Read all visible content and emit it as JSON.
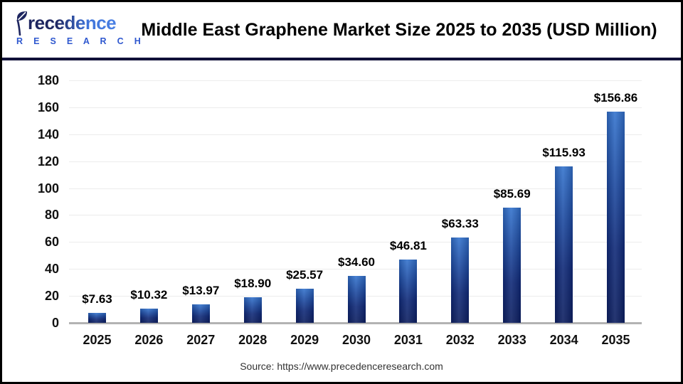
{
  "header": {
    "logo": {
      "brand": "Precedence",
      "sub": "R E S E A R C H",
      "navy": "#1e2660",
      "blue": "#3f74da"
    },
    "title": "Middle East Graphene Market Size 2025 to 2035 (USD Million)"
  },
  "chart_data": {
    "type": "bar",
    "title": "Middle East Graphene Market Size 2025 to 2035 (USD Million)",
    "unit": "USD Million",
    "categories": [
      "2025",
      "2026",
      "2027",
      "2028",
      "2029",
      "2030",
      "2031",
      "2032",
      "2033",
      "2034",
      "2035"
    ],
    "values": [
      7.63,
      10.32,
      13.97,
      18.9,
      25.57,
      34.6,
      46.81,
      63.33,
      85.69,
      115.93,
      156.86
    ],
    "value_labels": [
      "$7.63",
      "$10.32",
      "$13.97",
      "$18.90",
      "$25.57",
      "$34.60",
      "$46.81",
      "$63.33",
      "$85.69",
      "$115.93",
      "$156.86"
    ],
    "xlabel": "",
    "ylabel": "",
    "ylim": [
      0,
      180
    ],
    "ytick_step": 20,
    "grid": true,
    "legend": false,
    "colors": {
      "bar_top": "#3474ce",
      "bar_bottom": "#0d1f60",
      "gridline": "#ececec",
      "axis_line": "#b3b3b3"
    }
  },
  "footer": {
    "source": "Source: https://www.precedenceresearch.com"
  }
}
